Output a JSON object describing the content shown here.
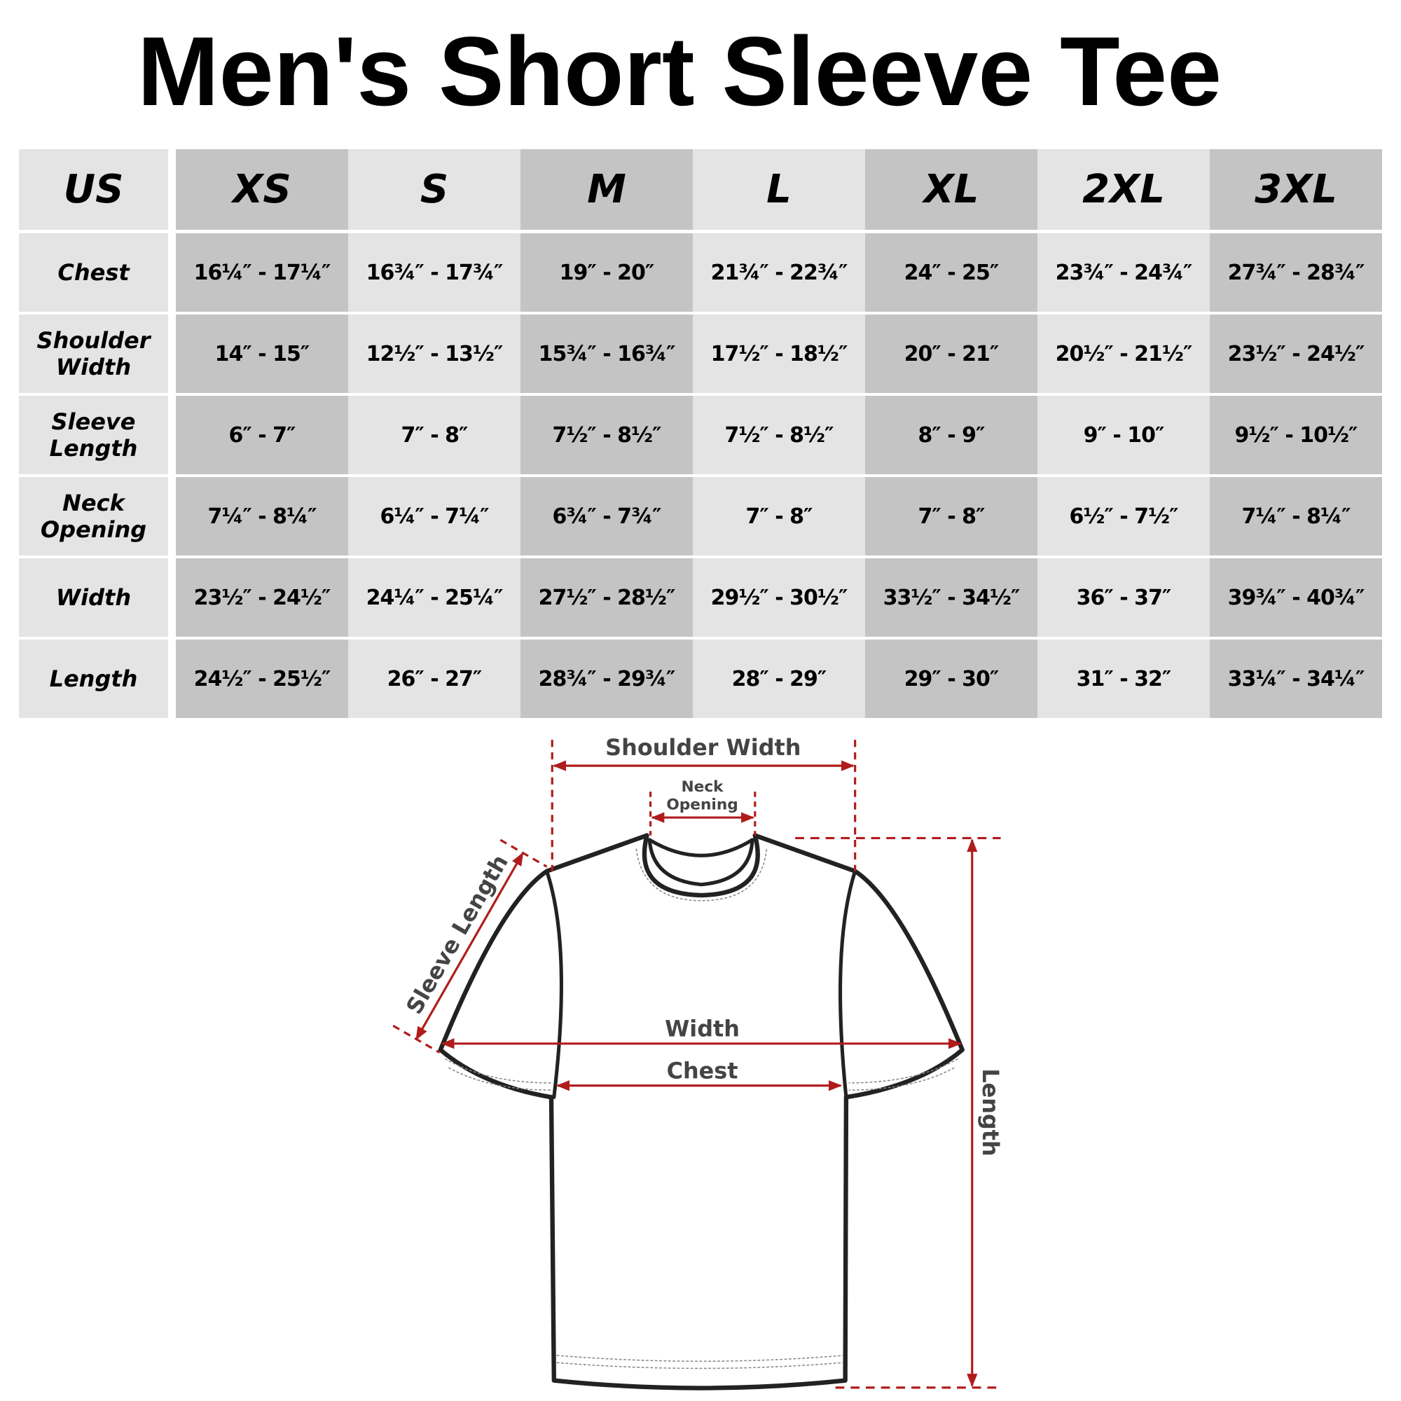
{
  "title": "Men's Short Sleeve Tee",
  "table": {
    "corner": "US",
    "sizes": [
      "XS",
      "S",
      "M",
      "L",
      "XL",
      "2XL",
      "3XL"
    ],
    "rows": [
      {
        "label": "Chest",
        "values": [
          "16¼″ - 17¼″",
          "16¾″ - 17¾″",
          "19″ - 20″",
          "21¾″ - 22¾″",
          "24″ - 25″",
          "23¾″ - 24¾″",
          "27¾″ - 28¾″"
        ]
      },
      {
        "label": "Shoulder Width",
        "values": [
          "14″ - 15″",
          "12½″ - 13½″",
          "15¾″ - 16¾″",
          "17½″ - 18½″",
          "20″ - 21″",
          "20½″ - 21½″",
          "23½″ - 24½″"
        ]
      },
      {
        "label": "Sleeve Length",
        "values": [
          "6″ - 7″",
          "7″ - 8″",
          "7½″ - 8½″",
          "7½″ - 8½″",
          "8″ - 9″",
          "9″ - 10″",
          "9½″ - 10½″"
        ]
      },
      {
        "label": "Neck Opening",
        "values": [
          "7¼″ - 8¼″",
          "6¼″ - 7¼″",
          "6¾″ - 7¾″",
          "7″ - 8″",
          "7″ - 8″",
          "6½″ - 7½″",
          "7¼″ - 8¼″"
        ]
      },
      {
        "label": "Width",
        "values": [
          "23½″ - 24½″",
          "24¼″ - 25¼″",
          "27½″ - 28½″",
          "29½″ - 30½″",
          "33½″ - 34½″",
          "36″ - 37″",
          "39¾″ - 40¾″"
        ]
      },
      {
        "label": "Length",
        "values": [
          "24½″ - 25½″",
          "26″ - 27″",
          "28¾″ - 29¾″",
          "28″ - 29″",
          "29″ - 30″",
          "31″ - 32″",
          "33¼″ - 34¼″"
        ]
      }
    ]
  },
  "diagram": {
    "shoulder_width": "Shoulder Width",
    "neck_opening_1": "Neck",
    "neck_opening_2": "Opening",
    "sleeve_length": "Sleeve Length",
    "width": "Width",
    "chest": "Chest",
    "length": "Length"
  },
  "colors": {
    "measure_line": "#b01c1c",
    "cell_dark": "#c4c4c4",
    "cell_light": "#e4e4e4",
    "label_text": "#444444"
  }
}
